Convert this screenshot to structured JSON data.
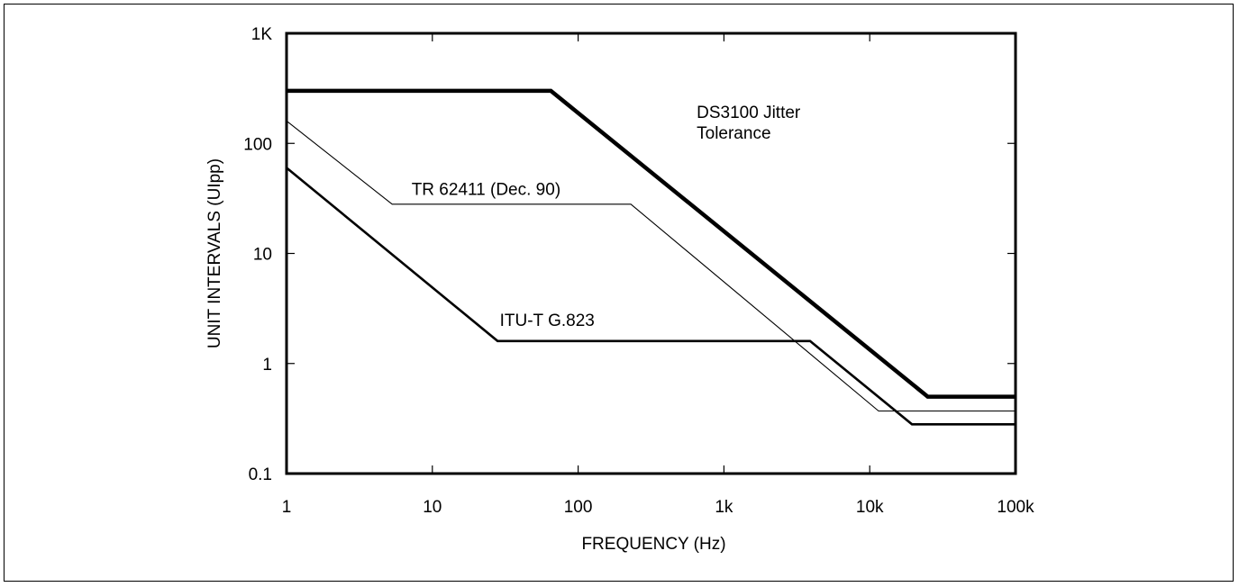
{
  "chart_data": {
    "type": "line",
    "x_scale": "log",
    "y_scale": "log",
    "xlim": [
      1,
      100000
    ],
    "ylim": [
      0.1,
      1000
    ],
    "x_ticks": [
      1,
      10,
      100,
      1000,
      10000,
      100000
    ],
    "x_tick_labels": [
      "1",
      "10",
      "100",
      "1k",
      "10k",
      "100k"
    ],
    "y_ticks": [
      0.1,
      1,
      10,
      100,
      1000
    ],
    "y_tick_labels": [
      "0.1",
      "1",
      "10",
      "100",
      "1K"
    ],
    "xlabel": "FREQUENCY (Hz)",
    "ylabel": "UNIT INTERVALS (UIpp)",
    "grid": false,
    "series": [
      {
        "name": "DS3100 Jitter Tolerance",
        "points": [
          [
            1,
            300
          ],
          [
            65,
            300
          ],
          [
            25000,
            0.5
          ],
          [
            100000,
            0.5
          ]
        ]
      },
      {
        "name": "TR 62411 (Dec. 90)",
        "points": [
          [
            1,
            160
          ],
          [
            5.3,
            28
          ],
          [
            230,
            28
          ],
          [
            11500,
            0.37
          ],
          [
            100000,
            0.37
          ]
        ]
      },
      {
        "name": "ITU-T G.823",
        "points": [
          [
            1,
            60
          ],
          [
            28,
            1.6
          ],
          [
            3900,
            1.6
          ],
          [
            19500,
            0.28
          ],
          [
            100000,
            0.28
          ]
        ]
      }
    ],
    "annotations": [
      {
        "text": "DS3100 Jitter",
        "x": 650,
        "y": 170
      },
      {
        "text": "Tolerance",
        "x": 650,
        "y": 110
      },
      {
        "text": "TR 62411 (Dec. 90)",
        "x": 7.2,
        "y": 34
      },
      {
        "text": "ITU-T G.823",
        "x": 29,
        "y": 2.2
      }
    ]
  }
}
